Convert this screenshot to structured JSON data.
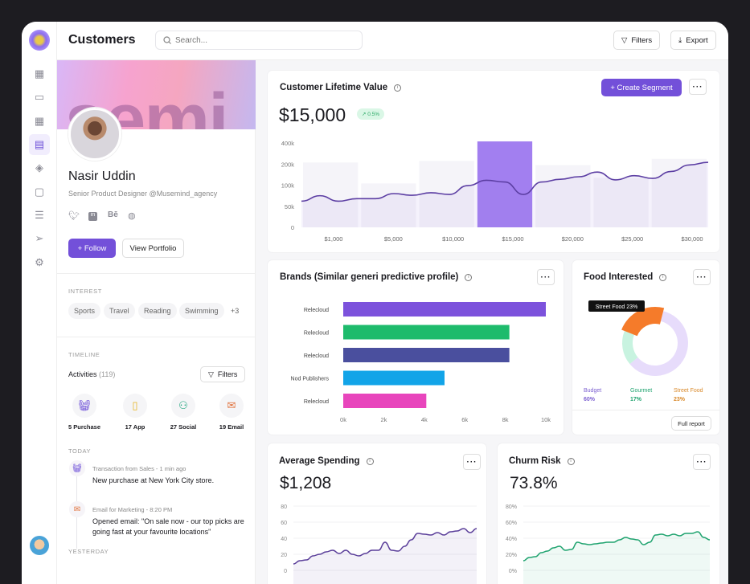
{
  "header": {
    "title": "Customers",
    "search_placeholder": "Search...",
    "filters": "Filters",
    "export": "Export"
  },
  "sidebar": {
    "items": [
      "dashboard",
      "messages",
      "apps",
      "customers",
      "tags",
      "orders",
      "documents",
      "send",
      "settings"
    ]
  },
  "profile": {
    "name": "Nasir Uddin",
    "role": "Senior Product Designer @Musemind_agency",
    "banner_text": "semi",
    "follow": "+ Follow",
    "view_portfolio": "View Portfolio",
    "social": [
      "twitter",
      "linkedin",
      "behance",
      "dribbble"
    ],
    "interest_label": "INTEREST",
    "interests": [
      "Sports",
      "Travel",
      "Reading",
      "Swimming",
      "+3"
    ],
    "timeline_label": "TIMELINE",
    "activities_label": "Activities",
    "activities_count": "(119)",
    "filters": "Filters",
    "activities": [
      {
        "label": "5 Purchase",
        "icon": "basket",
        "color": "#6d4fd8"
      },
      {
        "label": "17 App",
        "icon": "phone",
        "color": "#e6b422"
      },
      {
        "label": "27 Social",
        "icon": "people",
        "color": "#1aa37a"
      },
      {
        "label": "19 Email",
        "icon": "mail",
        "color": "#e0703a"
      }
    ],
    "today_label": "TODAY",
    "events": [
      {
        "meta": "Transaction from Sales - 1 min ago",
        "text": "New purchase at New York City store."
      },
      {
        "meta": "Email for Marketing - 8:20 PM",
        "text": "Opened email: \"On sale now - our top picks are going fast at your favourite locations\""
      }
    ],
    "yesterday_label": "YESTERDAY"
  },
  "clv": {
    "title": "Customer Lifetime Value",
    "value": "$15,000",
    "change": "↗ 0.5%",
    "create_segment": "+ Create Segment"
  },
  "brands": {
    "title": "Brands (Similar generi predictive profile)"
  },
  "food": {
    "title": "Food Interested",
    "tooltip": "Street Food 23%",
    "full_report": "Full report"
  },
  "avg": {
    "title": "Average Spending",
    "value": "$1,208"
  },
  "churn": {
    "title": "Churm Risk",
    "value": "73.8%"
  },
  "colors": {
    "accent": "#7350d9",
    "green": "#1fa36f",
    "orange": "#f57b2a"
  },
  "chart_data": [
    {
      "id": "clv",
      "type": "line",
      "x_ticks": [
        "$1,000",
        "$5,000",
        "$10,000",
        "$15,000",
        "$20,000",
        "$25,000",
        "$30,000"
      ],
      "y_ticks": [
        "0",
        "50k",
        "100k",
        "200k",
        "400k"
      ],
      "y_tick_values": [
        0,
        50,
        100,
        200,
        400
      ],
      "line": [
        62,
        75,
        62,
        68,
        68,
        80,
        76,
        82,
        78,
        99,
        123,
        115,
        78,
        115,
        128,
        140,
        162,
        125,
        145,
        132,
        165,
        196,
        217
      ],
      "bars": [
        215,
        108,
        230,
        430,
        195,
        135,
        250
      ],
      "highlight_index": 3
    },
    {
      "id": "brands",
      "type": "bar",
      "orientation": "horizontal",
      "categories": [
        "Relecloud",
        "Relecloud",
        "Relecloud",
        "Nod Publishers",
        "Relecloud"
      ],
      "values": [
        10000,
        8200,
        8200,
        5000,
        4100
      ],
      "colors": [
        "#7c52dc",
        "#1ebb6c",
        "#4a4f9e",
        "#12a4e8",
        "#e845bc"
      ],
      "x_ticks": [
        "0k",
        "2k",
        "4k",
        "6k",
        "8k",
        "10k"
      ],
      "xlim": [
        0,
        10000
      ]
    },
    {
      "id": "food",
      "type": "pie",
      "labels": [
        "Budget",
        "Gourmet",
        "Street Food"
      ],
      "values": [
        60,
        17,
        23
      ],
      "colors": [
        "#e7dcfb",
        "#c8f3e0",
        "#f57b2a"
      ],
      "label_colors": [
        "#7b5fd0",
        "#1fa36f",
        "#d9892a"
      ]
    },
    {
      "id": "avg",
      "type": "line",
      "y_ticks": [
        "0",
        "20",
        "40",
        "60",
        "80"
      ],
      "ylim": [
        0,
        80
      ],
      "values": [
        8,
        12,
        13,
        18,
        20,
        23,
        25,
        21,
        25,
        20,
        18,
        21,
        25,
        25,
        35,
        25,
        24,
        30,
        38,
        46,
        45,
        44,
        47,
        44,
        48,
        49,
        52,
        47,
        52
      ],
      "color": "#5b3f9a"
    },
    {
      "id": "churn",
      "type": "line",
      "y_ticks": [
        "0%",
        "20%",
        "40%",
        "60%",
        "80%"
      ],
      "ylim": [
        0,
        80
      ],
      "values": [
        12,
        16,
        17,
        22,
        24,
        28,
        30,
        25,
        26,
        35,
        33,
        32,
        33,
        34,
        35,
        35,
        38,
        41,
        39,
        38,
        32,
        35,
        44,
        45,
        43,
        45,
        43,
        46,
        46,
        48,
        41,
        38
      ],
      "color": "#1fa36f"
    }
  ]
}
